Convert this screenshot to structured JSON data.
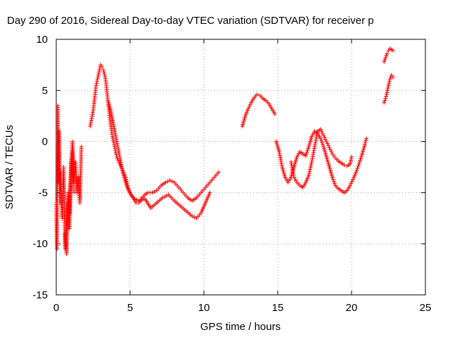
{
  "chart_data": {
    "type": "scatter",
    "title": "Day 290 of 2016, Sidereal Day-to-day VTEC variation (SDTVAR) for receiver p",
    "xlabel": "GPS time / hours",
    "ylabel": "SDTVAR / TECUs",
    "xlim": [
      0,
      25
    ],
    "ylim": [
      -15,
      10
    ],
    "xticks": [
      0,
      5,
      10,
      15,
      20,
      25
    ],
    "yticks": [
      -15,
      -10,
      -5,
      0,
      5,
      10
    ],
    "grid": true,
    "marker": "plus",
    "color": "#ff0000",
    "segments": [
      {
        "x": [
          0.0,
          0.05,
          0.1,
          0.15,
          0.2,
          0.25,
          0.3,
          0.4,
          0.5,
          0.6,
          0.7,
          0.8,
          0.9,
          1.0,
          1.1,
          1.2,
          1.3,
          1.4,
          1.5,
          1.6,
          1.7
        ],
        "y": [
          -6,
          -10.5,
          3.5,
          -4,
          1,
          -6,
          -3,
          -7.5,
          -2.5,
          -10.5,
          -8,
          -5,
          -7,
          -3,
          0,
          -4,
          -2,
          -5,
          -3.5,
          -6,
          -0.5
        ]
      },
      {
        "x": [
          0.6,
          0.7,
          0.8,
          0.9,
          1.0,
          1.1,
          1.2
        ],
        "y": [
          -9,
          -11,
          -6,
          -8.5,
          -2,
          -1,
          -5
        ]
      },
      {
        "x": [
          2.3,
          2.5,
          2.7,
          2.85,
          3.0,
          3.1,
          3.2,
          3.35,
          3.5,
          3.65,
          3.8,
          3.95,
          4.1,
          4.25,
          4.4,
          4.55,
          4.7,
          4.85,
          5.0,
          5.2,
          5.4,
          5.6,
          5.8,
          6.0,
          6.2,
          6.5,
          6.8,
          7.1,
          7.4,
          7.7,
          8.0,
          8.3,
          8.6,
          8.9,
          9.2,
          9.5,
          9.8,
          10.1,
          10.4,
          10.7,
          11.0
        ],
        "y": [
          1.5,
          3,
          5.5,
          6.5,
          7.5,
          7.3,
          7,
          6,
          4,
          2,
          0.5,
          -0.5,
          -1.5,
          -2,
          -2.5,
          -3,
          -3.5,
          -4.5,
          -5,
          -5.5,
          -6,
          -6,
          -5.5,
          -5.2,
          -5,
          -5,
          -4.8,
          -4.3,
          -4,
          -3.8,
          -4,
          -4.5,
          -5,
          -5.5,
          -5.8,
          -5.5,
          -5,
          -4.5,
          -4,
          -3.5,
          -3
        ]
      },
      {
        "x": [
          3.5,
          3.7,
          3.9,
          4.1,
          4.3,
          4.5,
          4.7,
          4.9,
          5.1,
          5.3,
          5.6,
          6.0,
          6.4,
          6.8,
          7.2,
          7.6,
          8.0,
          8.4,
          8.8,
          9.2,
          9.5,
          9.8,
          10.1,
          10.4
        ],
        "y": [
          4,
          3,
          1.5,
          0,
          -1.5,
          -3,
          -4,
          -4.8,
          -5.3,
          -5.6,
          -5.8,
          -5.6,
          -6.5,
          -6,
          -5.5,
          -5.2,
          -5.8,
          -6.3,
          -6.8,
          -7.3,
          -7.5,
          -7,
          -6,
          -5
        ]
      },
      {
        "x": [
          12.6,
          12.8,
          13.0,
          13.2,
          13.4,
          13.6,
          13.8,
          14.0,
          14.2,
          14.4,
          14.6,
          14.8
        ],
        "y": [
          1.5,
          2.5,
          3.2,
          3.8,
          4.3,
          4.6,
          4.5,
          4.2,
          4,
          3.7,
          3.2,
          2.7
        ]
      },
      {
        "x": [
          14.9,
          15.1,
          15.3,
          15.5,
          15.7,
          15.9,
          16.1,
          16.3,
          16.5,
          16.7,
          16.9,
          17.1,
          17.3,
          17.5,
          17.7,
          17.9,
          18.1,
          18.3,
          18.5,
          18.7,
          18.9,
          19.1,
          19.3,
          19.5,
          19.7,
          19.9,
          20.1,
          20.3,
          20.5,
          20.7,
          20.9,
          21.0
        ],
        "y": [
          0,
          -1,
          -2.5,
          -3.5,
          -4,
          -3.5,
          -2.5,
          -1.5,
          -1,
          -1.2,
          -1.4,
          -0.5,
          0.5,
          1,
          0.8,
          0.3,
          -0.5,
          -1.5,
          -2.5,
          -3.5,
          -4.3,
          -4.6,
          -4.8,
          -5,
          -4.8,
          -4.3,
          -3.7,
          -3,
          -2.2,
          -1.3,
          -0.3,
          0.3
        ]
      },
      {
        "x": [
          15.9,
          16.1,
          16.3,
          16.5,
          16.7,
          16.9,
          17.1,
          17.3,
          17.5,
          17.7,
          17.9,
          18.1,
          18.3,
          18.5,
          18.7,
          18.9,
          19.1,
          19.3,
          19.5,
          19.7,
          19.9,
          20.0
        ],
        "y": [
          -2,
          -3.5,
          -4,
          -4.3,
          -4.5,
          -4,
          -3.3,
          -2,
          -0.5,
          1,
          1.2,
          0.6,
          0,
          -0.6,
          -1.2,
          -1.6,
          -1.9,
          -2.1,
          -2.3,
          -2.4,
          -2.2,
          -1.5
        ]
      },
      {
        "x": [
          22.2,
          22.3,
          22.4,
          22.5,
          22.6,
          22.7,
          22.8
        ],
        "y": [
          3.8,
          4.2,
          4.8,
          5.5,
          6.1,
          6.5,
          6.3
        ]
      },
      {
        "x": [
          22.2,
          22.3,
          22.4,
          22.5,
          22.6,
          22.7,
          22.8
        ],
        "y": [
          7.8,
          8.2,
          8.6,
          8.9,
          9.1,
          9.0,
          8.9
        ]
      }
    ]
  }
}
